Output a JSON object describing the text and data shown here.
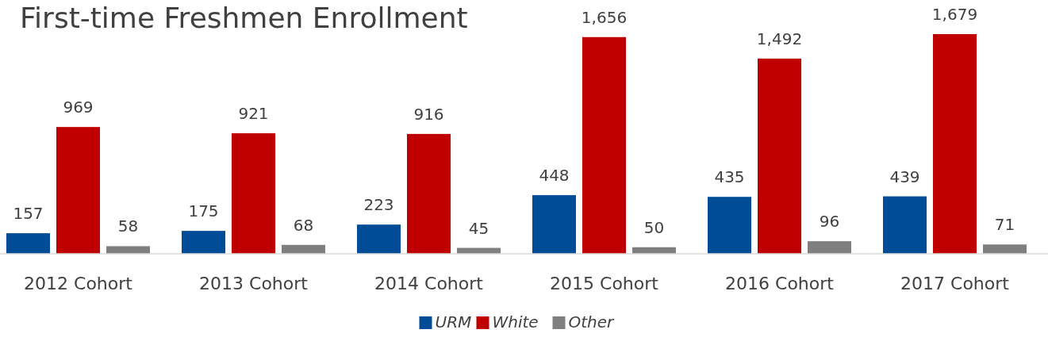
{
  "chart_data": {
    "type": "bar",
    "title": "First-time Freshmen Enrollment",
    "categories": [
      "2012 Cohort",
      "2013 Cohort",
      "2014 Cohort",
      "2015 Cohort",
      "2016 Cohort",
      "2017 Cohort"
    ],
    "series": [
      {
        "name": "URM",
        "color": "#004c97",
        "values": [
          157,
          175,
          223,
          448,
          435,
          439
        ],
        "value_labels": [
          "157",
          "175",
          "223",
          "448",
          "435",
          "439"
        ]
      },
      {
        "name": "White",
        "color": "#c00000",
        "values": [
          969,
          921,
          916,
          1656,
          1492,
          1679
        ],
        "value_labels": [
          "969",
          "921",
          "916",
          "1,656",
          "1,492",
          "1,679"
        ]
      },
      {
        "name": "Other",
        "color": "#7f7f7f",
        "values": [
          58,
          68,
          45,
          50,
          96,
          71
        ],
        "value_labels": [
          "58",
          "68",
          "45",
          "50",
          "96",
          "71"
        ]
      }
    ],
    "legend": "bottom"
  }
}
